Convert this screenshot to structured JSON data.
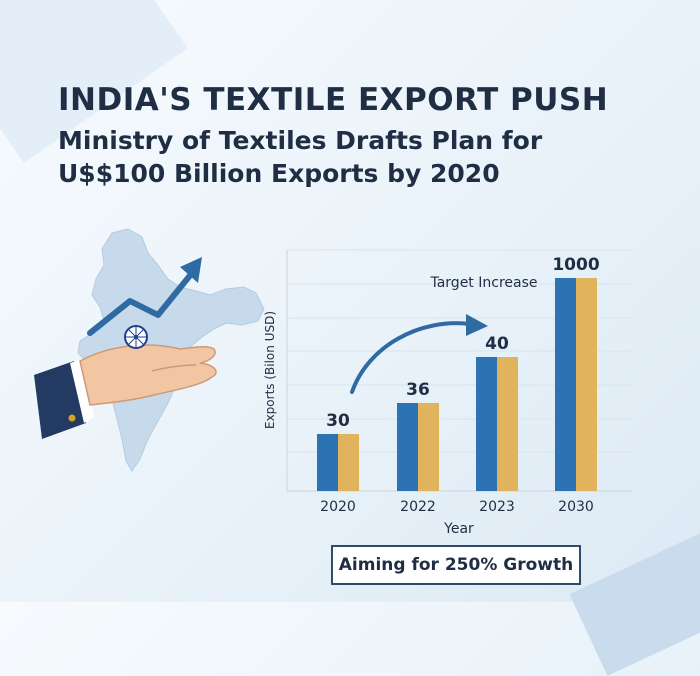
{
  "title": "INDIA'S TEXTILE EXPORT PUSH",
  "subtitle_lines": [
    "Ministry of Textiles Drafts Plan for",
    "U$$100 Billion Exports by 2020"
  ],
  "footer": "Aiming for 250% Growth",
  "colors": {
    "bar_blue": "#2b73b2",
    "bar_gold": "#e1b35c",
    "arrow": "#2f6aa2",
    "map": "#c7daeb",
    "navy_text": "#1f2e45"
  },
  "illustration": {
    "icons": [
      "india-map-icon",
      "hand-icon",
      "ashoka-chakra-icon",
      "growth-arrow-icon"
    ]
  },
  "chart_data": {
    "type": "bar",
    "categories": [
      "2020",
      "2022",
      "2023",
      "2030"
    ],
    "values": [
      30,
      36,
      40,
      1000
    ],
    "data_labels": [
      "30",
      "36",
      "40",
      "1000"
    ],
    "xlabel": "Year",
    "ylabel": "Exports (Bilon USD)",
    "annotation": "Target Increase",
    "grid": true,
    "legend": "none"
  }
}
